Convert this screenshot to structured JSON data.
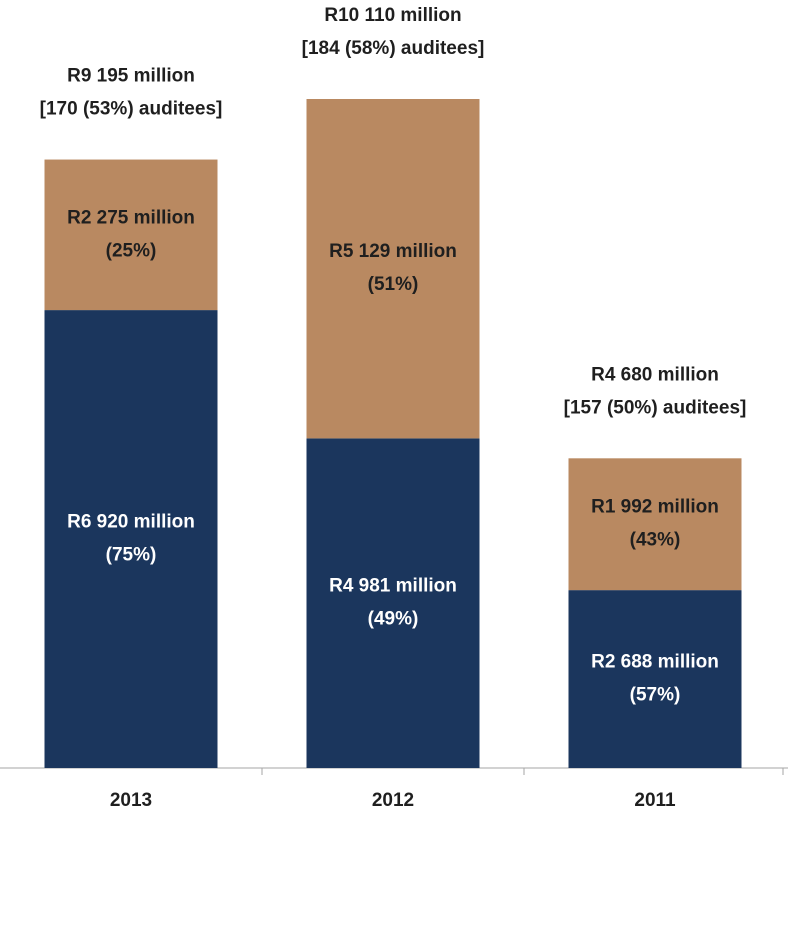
{
  "chart_data": {
    "type": "stacked_bar",
    "categories": [
      "2013",
      "2012",
      "2011"
    ],
    "series": [
      {
        "color": "#1b365d",
        "label_color": "#ffffff",
        "values": [
          6920,
          4981,
          2688
        ],
        "value_labels": [
          [
            "R6 920 million",
            "(75%)"
          ],
          [
            "R4 981 million",
            "(49%)"
          ],
          [
            "R2 688 million",
            "(57%)"
          ]
        ]
      },
      {
        "color": "#b98961",
        "label_color": "#1f1f1f",
        "values": [
          2275,
          5129,
          1992
        ],
        "value_labels": [
          [
            "R2 275 million",
            "(25%)"
          ],
          [
            "R5 129 million",
            "(51%)"
          ],
          [
            "R1 992 million",
            "(43%)"
          ]
        ]
      }
    ],
    "annotations": [
      [
        "R9 195 million",
        "[170  (53%) auditees]"
      ],
      [
        "R10 110 million",
        "[184 (58%) auditees]"
      ],
      [
        "R4 680 million",
        "[157 (50%) auditees]"
      ]
    ]
  }
}
